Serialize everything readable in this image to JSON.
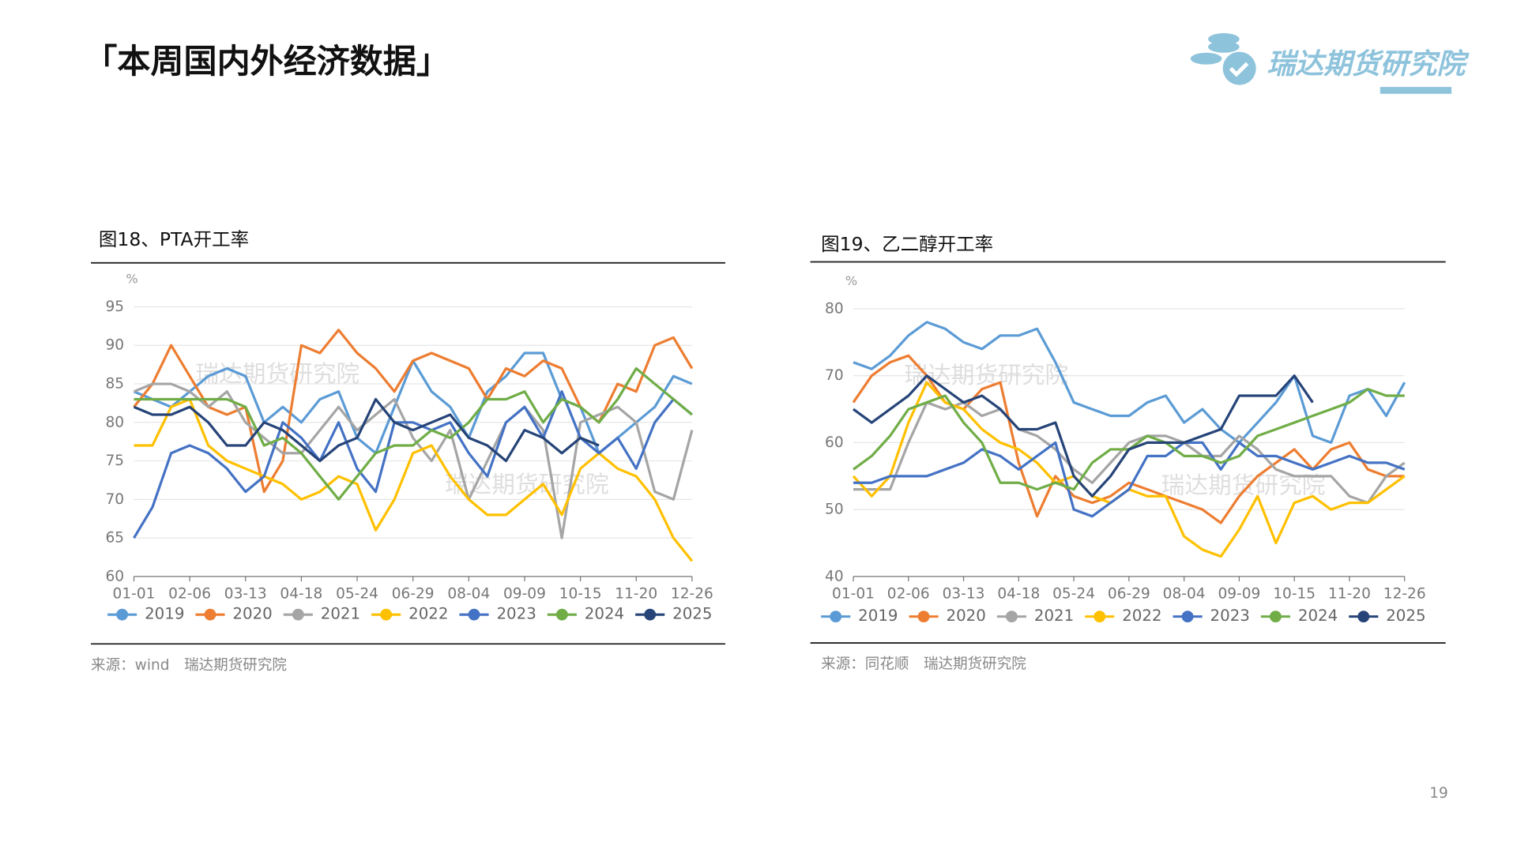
{
  "title": "「本周国内外经济数据」",
  "logo_text": "瑞达期货研究院",
  "page_number": "19",
  "chart_data": [
    {
      "type": "line",
      "title": "图18、PTA开工率",
      "y_label": "%",
      "source": "来源：wind　瑞达期货研究院",
      "watermark": "瑞达期货研究院",
      "categories": [
        "01-01",
        null,
        null,
        "02-06",
        null,
        null,
        "03-13",
        null,
        null,
        "04-18",
        null,
        null,
        "05-24",
        null,
        null,
        "06-29",
        null,
        null,
        "08-04",
        null,
        null,
        "09-09",
        null,
        null,
        "10-15",
        null,
        null,
        "11-20",
        null,
        null,
        "12-26"
      ],
      "ylim": [
        60,
        95
      ],
      "yticks": [
        60,
        65,
        70,
        75,
        80,
        85,
        90,
        95
      ],
      "grid": true,
      "series": [
        {
          "name": "2019",
          "color": "#5b9bd5",
          "values": [
            84,
            83,
            82,
            84,
            86,
            87,
            86,
            80,
            82,
            80,
            83,
            84,
            78,
            76,
            82,
            88,
            84,
            82,
            78,
            84,
            86,
            89,
            89,
            83,
            82,
            76,
            78,
            80,
            82,
            86,
            85
          ]
        },
        {
          "name": "2020",
          "color": "#ed7d31",
          "values": [
            82,
            85,
            90,
            86,
            82,
            81,
            82,
            71,
            75,
            90,
            89,
            92,
            89,
            87,
            84,
            88,
            89,
            88,
            87,
            83,
            87,
            86,
            88,
            87,
            82,
            80,
            85,
            84,
            90,
            91,
            87
          ]
        },
        {
          "name": "2021",
          "color": "#a5a5a5",
          "values": [
            84,
            85,
            85,
            84,
            82,
            84,
            80,
            78,
            76,
            76,
            79,
            82,
            79,
            81,
            83,
            78,
            75,
            79,
            70,
            75,
            80,
            82,
            79,
            65,
            80,
            81,
            82,
            80,
            71,
            70,
            79
          ]
        },
        {
          "name": "2022",
          "color": "#ffc000",
          "values": [
            77,
            77,
            82,
            83,
            77,
            75,
            74,
            73,
            72,
            70,
            71,
            73,
            72,
            66,
            70,
            76,
            77,
            73,
            70,
            68,
            68,
            70,
            72,
            68,
            74,
            76,
            74,
            73,
            70,
            65,
            62
          ]
        },
        {
          "name": "2023",
          "color": "#4472c4",
          "values": [
            65,
            69,
            76,
            77,
            76,
            74,
            71,
            73,
            80,
            78,
            75,
            80,
            74,
            71,
            80,
            80,
            79,
            80,
            76,
            73,
            80,
            82,
            78,
            84,
            78,
            76,
            78,
            74,
            80,
            83,
            81
          ]
        },
        {
          "name": "2024",
          "color": "#70ad47",
          "values": [
            83,
            83,
            83,
            83,
            83,
            83,
            82,
            77,
            78,
            76,
            73,
            70,
            73,
            76,
            77,
            77,
            79,
            78,
            80,
            83,
            83,
            84,
            80,
            83,
            82,
            80,
            83,
            87,
            85,
            83,
            81
          ]
        },
        {
          "name": "2025",
          "color": "#264478",
          "values": [
            82,
            81,
            81,
            82,
            80,
            77,
            77,
            80,
            79,
            77,
            75,
            77,
            78,
            83,
            80,
            79,
            80,
            81,
            78,
            77,
            75,
            79,
            78,
            76,
            78,
            77,
            null,
            null,
            null,
            null,
            null
          ]
        }
      ]
    },
    {
      "type": "line",
      "title": "图19、乙二醇开工率",
      "y_label": "%",
      "source": "来源：同花顺　瑞达期货研究院",
      "watermark": "瑞达期货研究院",
      "categories": [
        "01-01",
        null,
        null,
        "02-06",
        null,
        null,
        "03-13",
        null,
        null,
        "04-18",
        null,
        null,
        "05-24",
        null,
        null,
        "06-29",
        null,
        null,
        "08-04",
        null,
        null,
        "09-09",
        null,
        null,
        "10-15",
        null,
        null,
        "11-20",
        null,
        null,
        "12-26"
      ],
      "ylim": [
        40,
        80
      ],
      "yticks": [
        40,
        50,
        60,
        70,
        80
      ],
      "grid": true,
      "series": [
        {
          "name": "2019",
          "color": "#5b9bd5",
          "values": [
            72,
            71,
            73,
            76,
            78,
            77,
            75,
            74,
            76,
            76,
            77,
            72,
            66,
            65,
            64,
            64,
            66,
            67,
            63,
            65,
            62,
            60,
            63,
            66,
            70,
            61,
            60,
            67,
            68,
            64,
            69
          ]
        },
        {
          "name": "2020",
          "color": "#ed7d31",
          "values": [
            66,
            70,
            72,
            73,
            70,
            66,
            65,
            68,
            69,
            57,
            49,
            55,
            52,
            51,
            52,
            54,
            53,
            52,
            51,
            50,
            48,
            52,
            55,
            57,
            59,
            56,
            59,
            60,
            56,
            55,
            55
          ]
        },
        {
          "name": "2021",
          "color": "#a5a5a5",
          "values": [
            53,
            53,
            53,
            60,
            66,
            65,
            66,
            64,
            65,
            62,
            61,
            59,
            56,
            54,
            57,
            60,
            61,
            61,
            60,
            58,
            58,
            61,
            59,
            56,
            55,
            55,
            55,
            52,
            51,
            55,
            57
          ]
        },
        {
          "name": "2022",
          "color": "#ffc000",
          "values": [
            55,
            52,
            55,
            63,
            69,
            66,
            65,
            62,
            60,
            59,
            57,
            54,
            55,
            52,
            51,
            53,
            52,
            52,
            46,
            44,
            43,
            47,
            52,
            45,
            51,
            52,
            50,
            51,
            51,
            53,
            55
          ]
        },
        {
          "name": "2023",
          "color": "#4472c4",
          "values": [
            54,
            54,
            55,
            55,
            55,
            56,
            57,
            59,
            58,
            56,
            58,
            60,
            50,
            49,
            51,
            53,
            58,
            58,
            60,
            60,
            56,
            60,
            58,
            58,
            57,
            56,
            57,
            58,
            57,
            57,
            56
          ]
        },
        {
          "name": "2024",
          "color": "#70ad47",
          "values": [
            56,
            58,
            61,
            65,
            66,
            67,
            63,
            60,
            54,
            54,
            53,
            54,
            53,
            57,
            59,
            59,
            61,
            60,
            58,
            58,
            57,
            58,
            61,
            62,
            63,
            64,
            65,
            66,
            68,
            67,
            67
          ]
        },
        {
          "name": "2025",
          "color": "#264478",
          "values": [
            65,
            63,
            65,
            67,
            70,
            68,
            66,
            67,
            65,
            62,
            62,
            63,
            55,
            52,
            55,
            59,
            60,
            60,
            60,
            61,
            62,
            67,
            67,
            67,
            70,
            66,
            null,
            null,
            null,
            null,
            null
          ]
        }
      ]
    }
  ]
}
